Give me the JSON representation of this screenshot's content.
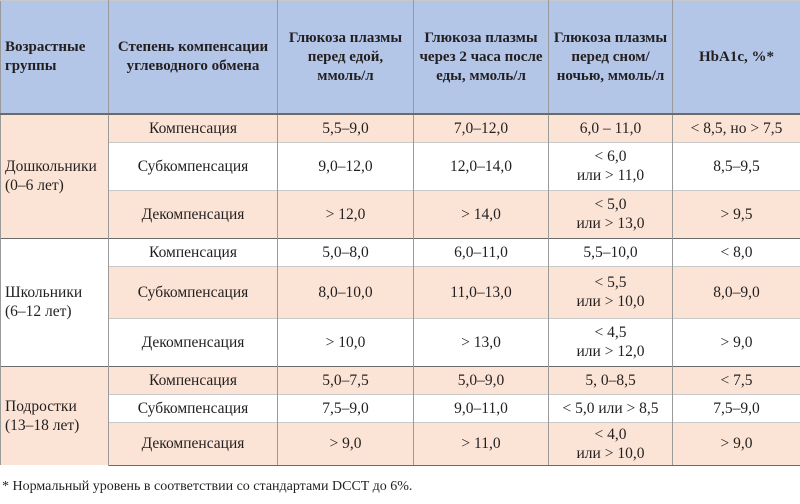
{
  "table": {
    "header": [
      "Возрастные группы",
      "Степень компенсации углеводного обмена",
      "Глюкоза плазмы перед едой, ммоль/л",
      "Глюкоза плазмы через 2 часа после еды, ммоль/л",
      "Глюкоза плазмы перед сном/ ночью, ммоль/л",
      "HbA1c, %*"
    ],
    "groups": [
      {
        "name": "Дошкольники\n(0–6 лет)",
        "rows": [
          [
            "Компенсация",
            "5,5–9,0",
            "7,0–12,0",
            "6,0 – 11,0",
            "< 8,5, но > 7,5"
          ],
          [
            "Субкомпенсация",
            "9,0–12,0",
            "12,0–14,0",
            "< 6,0\nили > 11,0",
            "8,5–9,5"
          ],
          [
            "Декомпенсация",
            "> 12,0",
            "> 14,0",
            "< 5,0\nили > 13,0",
            "> 9,5"
          ]
        ]
      },
      {
        "name": "Школьники\n(6–12 лет)",
        "rows": [
          [
            "Компенсация",
            "5,0–8,0",
            "6,0–11,0",
            "5,5–10,0",
            "< 8,0"
          ],
          [
            "Субкомпенсация",
            "8,0–10,0",
            "11,0–13,0",
            "< 5,5\nили > 10,0",
            "8,0–9,0"
          ],
          [
            "Декомпенсация",
            "> 10,0",
            "> 13,0",
            "< 4,5\nили > 12,0",
            "> 9,0"
          ]
        ]
      },
      {
        "name": "Подростки\n(13–18 лет)",
        "rows": [
          [
            "Компенсация",
            "5,0–7,5",
            "5,0–9,0",
            "5, 0–8,5",
            "< 7,5"
          ],
          [
            "Субкомпенсация",
            "7,5–9,0",
            "9,0–11,0",
            "< 5,0 или > 8,5",
            "7,5–9,0"
          ],
          [
            "Декомпенсация",
            "> 9,0",
            "> 11,0",
            "< 4,0\nили > 10,0",
            "> 9,0"
          ]
        ]
      }
    ]
  },
  "footnote": "* Нормальный уровень в соответствии со стандартами DCCT до 6%."
}
